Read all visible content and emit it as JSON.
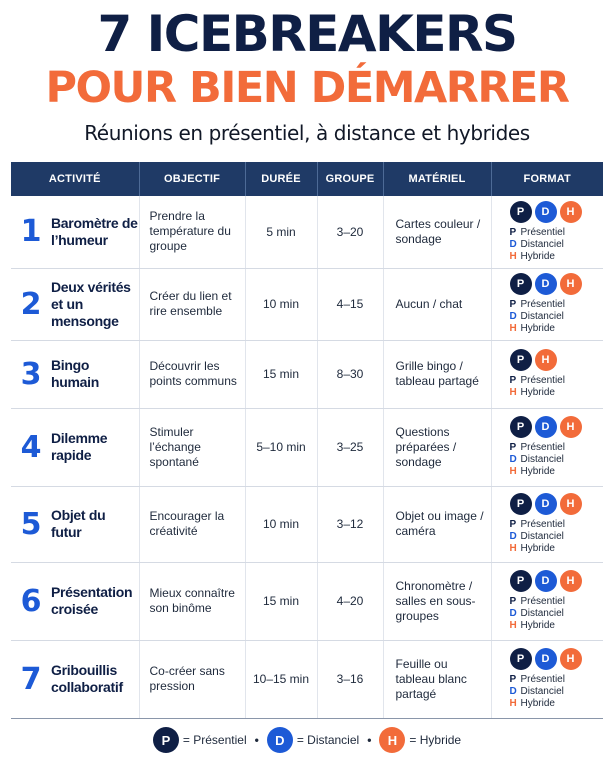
{
  "header": {
    "title_line1": "7 ICEBREAKERS",
    "title_line2": "POUR BIEN DÉMARRER",
    "subtitle": "Réunions en présentiel, à distance et hybrides"
  },
  "columns": [
    "ACTIVITÉ",
    "OBJECTIF",
    "DURÉE",
    "GROUPE",
    "MATÉRIEL",
    "FORMAT"
  ],
  "format_labels": {
    "P": "Présentiel",
    "D": "Distanciel",
    "H": "Hybride"
  },
  "rows": [
    {
      "num": "1",
      "name": "Baromètre de l’humeur",
      "objective": "Prendre la température du groupe",
      "duration": "5 min",
      "group": "3–20",
      "material": "Cartes couleur / sondage",
      "formats": [
        "P",
        "D",
        "H"
      ]
    },
    {
      "num": "2",
      "name": "Deux vérités et un mensonge",
      "objective": "Créer du lien et rire ensemble",
      "duration": "10 min",
      "group": "4–15",
      "material": "Aucun / chat",
      "formats": [
        "P",
        "D",
        "H"
      ]
    },
    {
      "num": "3",
      "name": "Bingo humain",
      "objective": "Découvrir les points communs",
      "duration": "15 min",
      "group": "8–30",
      "material": "Grille bingo / tableau partagé",
      "formats": [
        "P",
        "H"
      ]
    },
    {
      "num": "4",
      "name": "Dilemme rapide",
      "objective": "Stimuler l’échange spontané",
      "duration": "5–10 min",
      "group": "3–25",
      "material": "Questions préparées / sondage",
      "formats": [
        "P",
        "D",
        "H"
      ]
    },
    {
      "num": "5",
      "name": "Objet du futur",
      "objective": "Encourager la créativité",
      "duration": "10 min",
      "group": "3–12",
      "material": "Objet ou image / caméra",
      "formats": [
        "P",
        "D",
        "H"
      ]
    },
    {
      "num": "6",
      "name": "Présentation croisée",
      "objective": "Mieux connaître son binôme",
      "duration": "15 min",
      "group": "4–20",
      "material": "Chronomètre / salles en sous-groupes",
      "formats": [
        "P",
        "D",
        "H"
      ]
    },
    {
      "num": "7",
      "name": "Gribouillis collaboratif",
      "objective": "Co-créer sans pression",
      "duration": "10–15 min",
      "group": "3–16",
      "material": "Feuille ou tableau blanc partagé",
      "formats": [
        "P",
        "D",
        "H"
      ]
    }
  ],
  "legend": {
    "items": [
      {
        "letter": "P",
        "text": "= Présentiel"
      },
      {
        "letter": "D",
        "text": "= Distanciel"
      },
      {
        "letter": "H",
        "text": "= Hybride"
      }
    ],
    "separator": "•"
  },
  "colors": {
    "navy": "#0f1f45",
    "blue": "#1d5ad6",
    "orange": "#f26b3a",
    "header_bg": "#1f3a66"
  }
}
